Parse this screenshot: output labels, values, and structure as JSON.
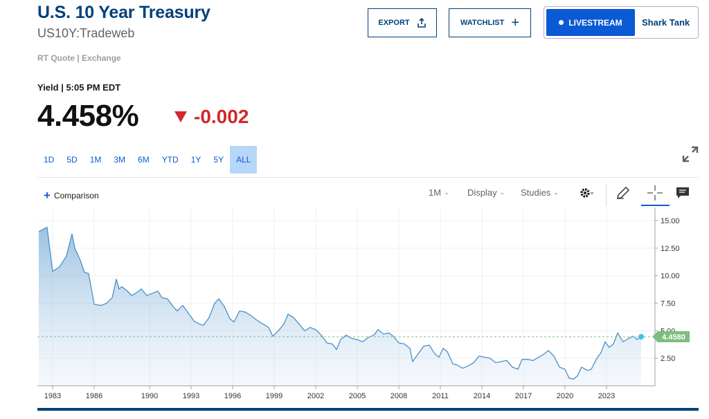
{
  "header": {
    "title": "U.S. 10 Year Treasury",
    "symbol": "US10Y:Tradeweb",
    "rt_quote": "RT Quote | Exchange",
    "export_label": "EXPORT",
    "watchlist_label": "WATCHLIST",
    "livestream_label": "LIVESTREAM",
    "show_label": "Shark Tank"
  },
  "quote": {
    "yield_label": "Yield | 5:05 PM EDT",
    "price": "4.458%",
    "change": "-0.002",
    "change_color": "#d0282d"
  },
  "ranges": [
    "1D",
    "5D",
    "1M",
    "3M",
    "6M",
    "YTD",
    "1Y",
    "5Y",
    "ALL"
  ],
  "active_range": "ALL",
  "toolbar": {
    "comparison_label": "Comparison",
    "interval_label": "1M",
    "display_label": "Display",
    "studies_label": "Studies"
  },
  "chart_data": {
    "type": "area",
    "x": [
      1982,
      1982.6,
      1983,
      1983.5,
      1984,
      1984.4,
      1984.6,
      1985,
      1985.3,
      1985.6,
      1986,
      1986.5,
      1986.9,
      1987.3,
      1987.6,
      1987.8,
      1988,
      1988.4,
      1988.7,
      1989,
      1989.4,
      1989.8,
      1990.2,
      1990.6,
      1990.9,
      1991.3,
      1991.7,
      1992,
      1992.4,
      1992.8,
      1993.2,
      1993.6,
      1993.9,
      1994.3,
      1994.7,
      1995,
      1995.4,
      1995.8,
      1996.1,
      1996.5,
      1996.9,
      1997.3,
      1997.7,
      1998.2,
      1998.6,
      1998.9,
      1999.3,
      1999.7,
      2000,
      2000.4,
      2000.8,
      2001.2,
      2001.6,
      2002,
      2002.4,
      2002.8,
      2003.2,
      2003.5,
      2003.8,
      2004.2,
      2004.6,
      2005,
      2005.4,
      2005.8,
      2006.2,
      2006.5,
      2006.9,
      2007.3,
      2007.6,
      2008,
      2008.4,
      2008.8,
      2009,
      2009.4,
      2009.8,
      2010.2,
      2010.6,
      2010.9,
      2011.2,
      2011.5,
      2011.9,
      2012.2,
      2012.6,
      2013,
      2013.4,
      2013.8,
      2014.2,
      2014.6,
      2015,
      2015.4,
      2015.8,
      2016.2,
      2016.6,
      2016.9,
      2017.3,
      2017.7,
      2018.1,
      2018.5,
      2018.8,
      2019.2,
      2019.6,
      2020,
      2020.3,
      2020.6,
      2020.9,
      2021.2,
      2021.6,
      2021.9,
      2022.3,
      2022.6,
      2022.9,
      2023.2,
      2023.5,
      2023.8,
      2024.2,
      2024.6,
      2024.9,
      2025.2,
      2025.5
    ],
    "values": [
      14.0,
      14.4,
      10.4,
      10.8,
      11.8,
      13.8,
      12.5,
      11.4,
      10.3,
      10.2,
      7.4,
      7.3,
      7.5,
      8.0,
      9.7,
      8.8,
      9.0,
      8.6,
      8.2,
      8.4,
      8.8,
      8.2,
      8.4,
      8.6,
      8.0,
      7.9,
      7.2,
      6.8,
      7.3,
      6.6,
      5.9,
      5.6,
      5.5,
      6.2,
      7.5,
      7.9,
      7.2,
      6.1,
      5.8,
      6.8,
      6.7,
      6.4,
      6.0,
      5.6,
      5.3,
      4.5,
      5.0,
      5.6,
      6.5,
      6.2,
      5.6,
      5.0,
      5.3,
      5.1,
      4.6,
      3.9,
      3.8,
      3.3,
      4.2,
      4.6,
      4.3,
      4.2,
      4.0,
      4.4,
      4.6,
      5.1,
      4.7,
      4.8,
      4.5,
      3.9,
      3.8,
      3.4,
      2.2,
      2.9,
      3.6,
      3.7,
      2.9,
      2.6,
      3.4,
      3.1,
      2.0,
      1.9,
      1.6,
      1.8,
      2.1,
      2.7,
      2.6,
      2.5,
      2.1,
      2.2,
      2.3,
      1.7,
      1.5,
      2.4,
      2.4,
      2.3,
      2.6,
      2.9,
      3.2,
      2.7,
      1.7,
      1.5,
      0.7,
      0.6,
      0.9,
      1.7,
      1.4,
      1.5,
      2.5,
      3.0,
      4.0,
      3.5,
      3.8,
      4.8,
      4.0,
      4.3,
      4.5,
      4.2,
      4.45
    ],
    "xlim": [
      1981.9,
      2026.5
    ],
    "ylim": [
      0,
      16.2
    ],
    "x_ticks": [
      "1983",
      "1986",
      "1990",
      "1993",
      "1996",
      "1999",
      "2002",
      "2005",
      "2008",
      "2011",
      "2014",
      "2017",
      "2020",
      "2023"
    ],
    "x_tick_values": [
      1983,
      1986,
      1990,
      1993,
      1996,
      1999,
      2002,
      2005,
      2008,
      2011,
      2014,
      2017,
      2020,
      2023
    ],
    "y_ticks": [
      "15.00",
      "12.50",
      "10.00",
      "7.50",
      "5.00",
      "2.50"
    ],
    "y_tick_values": [
      15,
      12.5,
      10,
      7.5,
      5,
      2.5
    ],
    "last_value_label": "4.4580",
    "last_value": 4.458,
    "grid": true,
    "line_color": "#4a90c8",
    "fill_color": "#d8e6f4",
    "marker_color": "#3ec1ec",
    "last_label_color": "#7ebd7e"
  }
}
